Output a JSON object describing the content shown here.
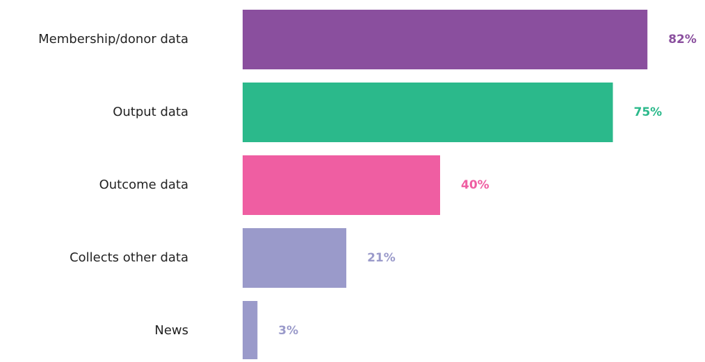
{
  "chart_data": {
    "type": "hbar",
    "categories": [
      "Membership/donor data",
      "Output data",
      "Outcome data",
      "Collects other data",
      "News"
    ],
    "values": [
      82,
      75,
      40,
      21,
      3
    ],
    "value_labels": [
      "82%",
      "75%",
      "40%",
      "21%",
      "3%"
    ],
    "colors": [
      "#8a4f9e",
      "#2bb98b",
      "#ef5ea2",
      "#9a9aca",
      "#9a9aca"
    ]
  }
}
